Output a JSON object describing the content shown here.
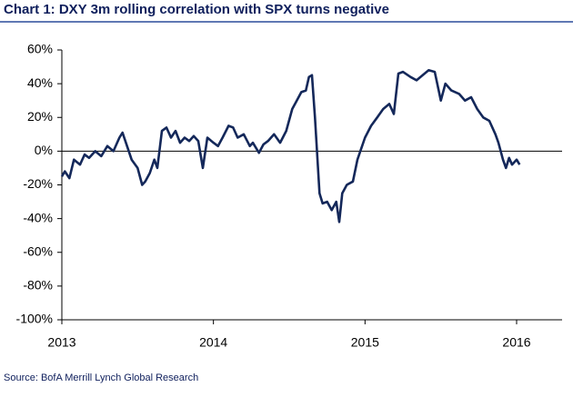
{
  "chart_data": {
    "type": "line",
    "title": "Chart 1: DXY 3m rolling correlation with SPX turns negative",
    "source": "Source: BofA Merrill Lynch Global Research",
    "x": [
      2013.0,
      2013.02,
      2013.05,
      2013.08,
      2013.12,
      2013.15,
      2013.18,
      2013.22,
      2013.26,
      2013.3,
      2013.34,
      2013.38,
      2013.4,
      2013.43,
      2013.46,
      2013.5,
      2013.53,
      2013.55,
      2013.58,
      2013.61,
      2013.63,
      2013.66,
      2013.69,
      2013.72,
      2013.75,
      2013.78,
      2013.81,
      2013.84,
      2013.87,
      2013.9,
      2013.93,
      2013.96,
      2014.0,
      2014.03,
      2014.06,
      2014.1,
      2014.13,
      2014.16,
      2014.2,
      2014.24,
      2014.26,
      2014.3,
      2014.33,
      2014.36,
      2014.4,
      2014.44,
      2014.48,
      2014.52,
      2014.55,
      2014.58,
      2014.61,
      2014.63,
      2014.65,
      2014.67,
      2014.7,
      2014.72,
      2014.75,
      2014.78,
      2014.81,
      2014.83,
      2014.85,
      2014.88,
      2014.92,
      2014.95,
      2015.0,
      2015.04,
      2015.08,
      2015.12,
      2015.16,
      2015.19,
      2015.22,
      2015.25,
      2015.3,
      2015.34,
      2015.38,
      2015.42,
      2015.46,
      2015.5,
      2015.53,
      2015.57,
      2015.62,
      2015.66,
      2015.7,
      2015.74,
      2015.78,
      2015.82,
      2015.86,
      2015.88,
      2015.91,
      2015.93,
      2015.95,
      2015.97,
      2016.0,
      2016.02
    ],
    "series": [
      {
        "color": "#14285a",
        "values": [
          -15,
          -12,
          -16,
          -5,
          -8,
          -2,
          -4,
          0,
          -3,
          3,
          0,
          8,
          11,
          3,
          -5,
          -10,
          -20,
          -18,
          -13,
          -5,
          -10,
          12,
          14,
          8,
          12,
          5,
          8,
          6,
          9,
          6,
          -10,
          8,
          5,
          3,
          8,
          15,
          14,
          8,
          10,
          3,
          5,
          -1,
          4,
          6,
          10,
          5,
          12,
          25,
          30,
          35,
          36,
          44,
          45,
          20,
          -25,
          -31,
          -30,
          -35,
          -30,
          -42,
          -25,
          -20,
          -18,
          -5,
          8,
          15,
          20,
          25,
          28,
          22,
          46,
          47,
          44,
          42,
          45,
          48,
          47,
          30,
          40,
          36,
          34,
          30,
          32,
          25,
          20,
          18,
          10,
          5,
          -5,
          -10,
          -4,
          -8,
          -5,
          -8
        ]
      }
    ],
    "xlim": [
      2013,
      2016.3
    ],
    "xticks": [
      2013,
      2014,
      2015,
      2016
    ],
    "ylim": [
      -100,
      60
    ],
    "yticks": [
      {
        "value": -100,
        "label": "-100%"
      },
      {
        "value": -80,
        "label": "-80%"
      },
      {
        "value": -60,
        "label": "-60%"
      },
      {
        "value": -40,
        "label": "-40%"
      },
      {
        "value": -20,
        "label": "-20%"
      },
      {
        "value": 0,
        "label": "0%"
      },
      {
        "value": 20,
        "label": "20%"
      },
      {
        "value": 40,
        "label": "40%"
      },
      {
        "value": 60,
        "label": "60%"
      }
    ]
  }
}
